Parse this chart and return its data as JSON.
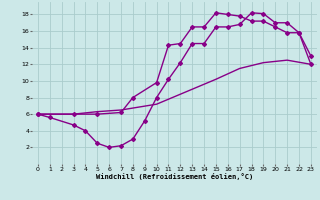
{
  "background_color": "#cce8e8",
  "grid_color": "#aacccc",
  "line_color": "#880088",
  "marker": "D",
  "marker_size": 2.0,
  "line_width": 1.0,
  "xlim": [
    -0.5,
    23.5
  ],
  "ylim": [
    0,
    19.5
  ],
  "xticks": [
    0,
    1,
    2,
    3,
    4,
    5,
    6,
    7,
    8,
    9,
    10,
    11,
    12,
    13,
    14,
    15,
    16,
    17,
    18,
    19,
    20,
    21,
    22,
    23
  ],
  "yticks": [
    2,
    4,
    6,
    8,
    10,
    12,
    14,
    16,
    18
  ],
  "xlabel": "Windchill (Refroidissement éolien,°C)",
  "curve1_x": [
    0,
    1,
    3,
    4,
    5,
    6,
    7,
    8,
    9,
    10,
    11,
    12,
    13,
    14,
    15,
    16,
    17,
    18,
    19,
    20,
    21,
    22,
    23
  ],
  "curve1_y": [
    6.0,
    5.6,
    4.7,
    4.0,
    2.5,
    2.0,
    2.2,
    3.0,
    5.2,
    8.0,
    10.2,
    12.2,
    14.5,
    14.5,
    16.5,
    16.5,
    16.8,
    18.2,
    18.1,
    17.0,
    17.0,
    15.8,
    13.0
  ],
  "curve2_x": [
    0,
    3,
    5,
    7,
    8,
    10,
    11,
    12,
    13,
    14,
    15,
    16,
    17,
    18,
    19,
    20,
    21,
    22,
    23
  ],
  "curve2_y": [
    6.0,
    6.0,
    6.0,
    6.2,
    8.0,
    9.8,
    14.3,
    14.5,
    16.5,
    16.5,
    18.2,
    18.0,
    17.8,
    17.2,
    17.2,
    16.5,
    15.8,
    15.8,
    12.0
  ],
  "curve3_x": [
    0,
    3,
    5,
    7,
    10,
    13,
    15,
    17,
    19,
    21,
    23
  ],
  "curve3_y": [
    6.0,
    6.0,
    6.3,
    6.5,
    7.2,
    9.0,
    10.2,
    11.5,
    12.2,
    12.5,
    12.0
  ]
}
